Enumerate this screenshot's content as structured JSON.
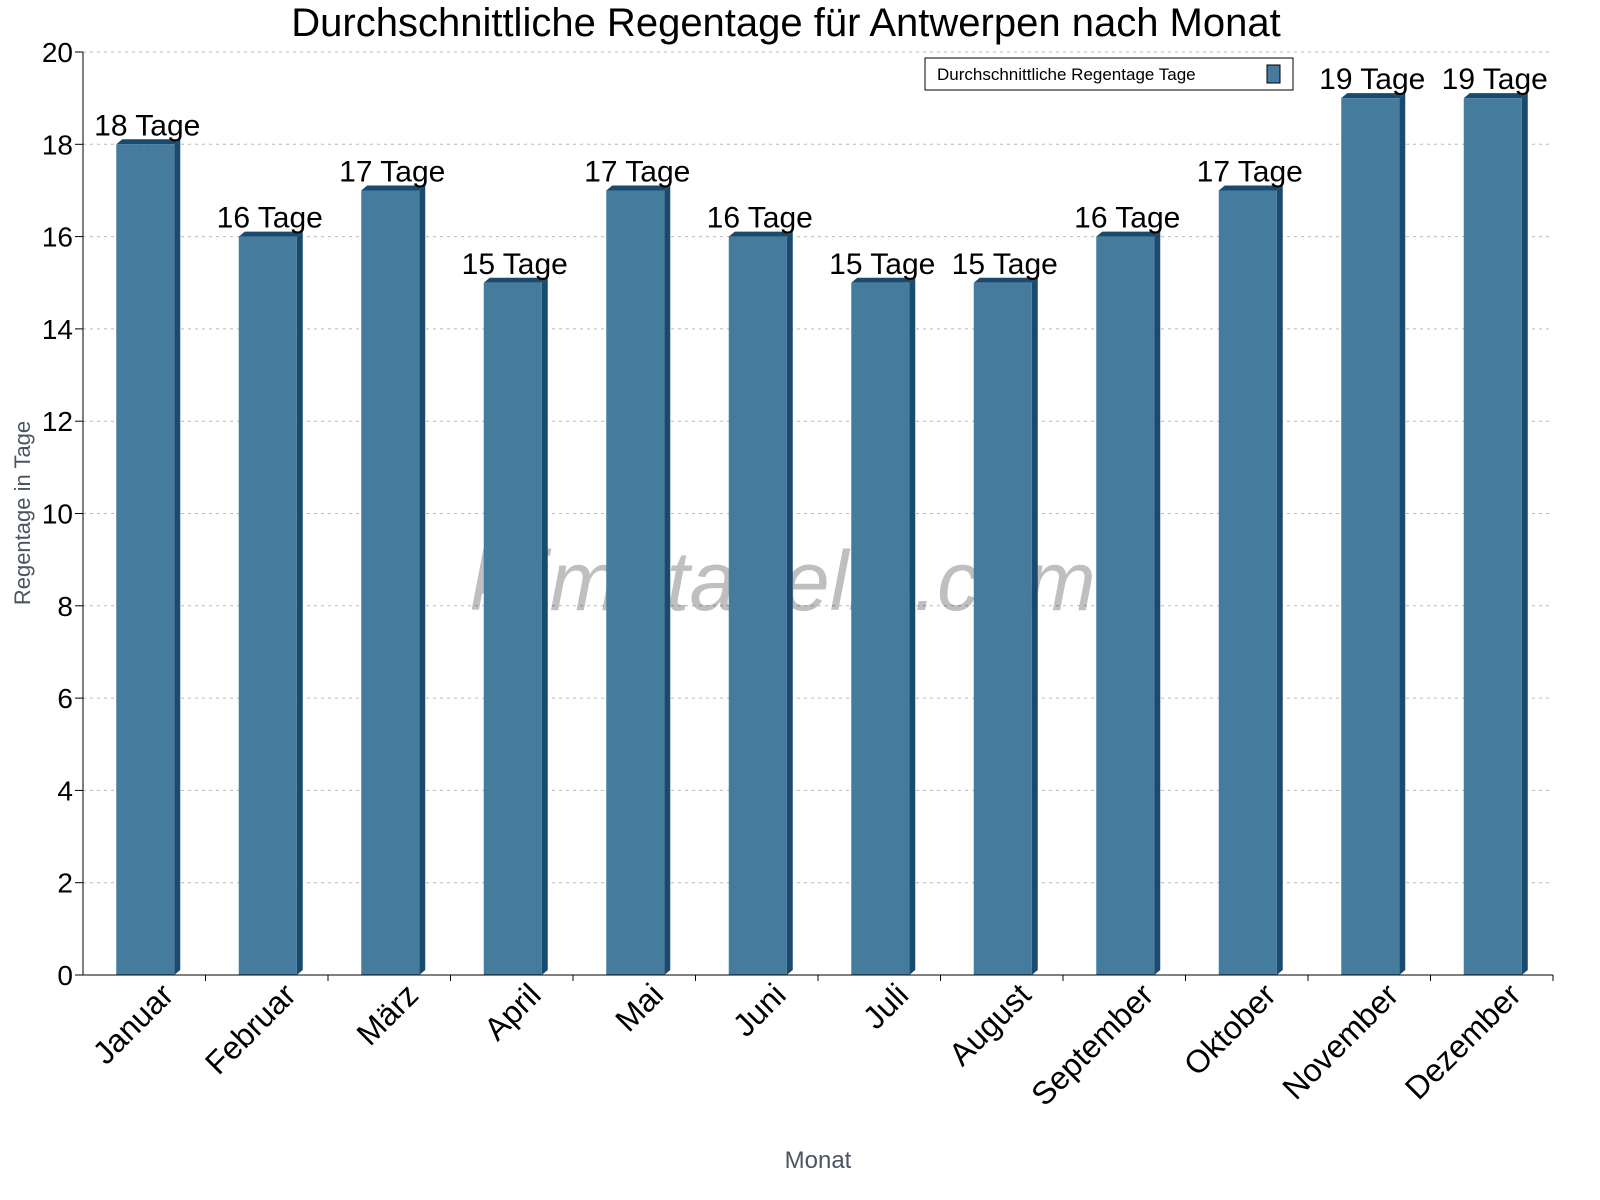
{
  "chart_data": {
    "type": "bar",
    "title": "Durchschnittliche Regentage für Antwerpen nach Monat",
    "xlabel": "Monat",
    "ylabel": "Regentage in Tage",
    "categories": [
      "Januar",
      "Februar",
      "März",
      "April",
      "Mai",
      "Juni",
      "Juli",
      "August",
      "September",
      "Oktober",
      "November",
      "Dezember"
    ],
    "series": [
      {
        "name": "Durchschnittliche Regentage Tage",
        "values": [
          18,
          16,
          17,
          15,
          17,
          16,
          15,
          15,
          16,
          17,
          19,
          19
        ]
      }
    ],
    "data_labels": [
      "18 Tage",
      "16 Tage",
      "17 Tage",
      "15 Tage",
      "17 Tage",
      "16 Tage",
      "15 Tage",
      "15 Tage",
      "16 Tage",
      "17 Tage",
      "19 Tage",
      "19 Tage"
    ],
    "ylim": [
      0,
      20
    ],
    "yticks": [
      0,
      2,
      4,
      6,
      8,
      10,
      12,
      14,
      16,
      18,
      20
    ],
    "grid": true,
    "legend_position": "top-right",
    "colors": {
      "bar_front": "#457b9d",
      "bar_side": "#1a4a6e"
    },
    "watermark": "klimatabelle.com"
  }
}
